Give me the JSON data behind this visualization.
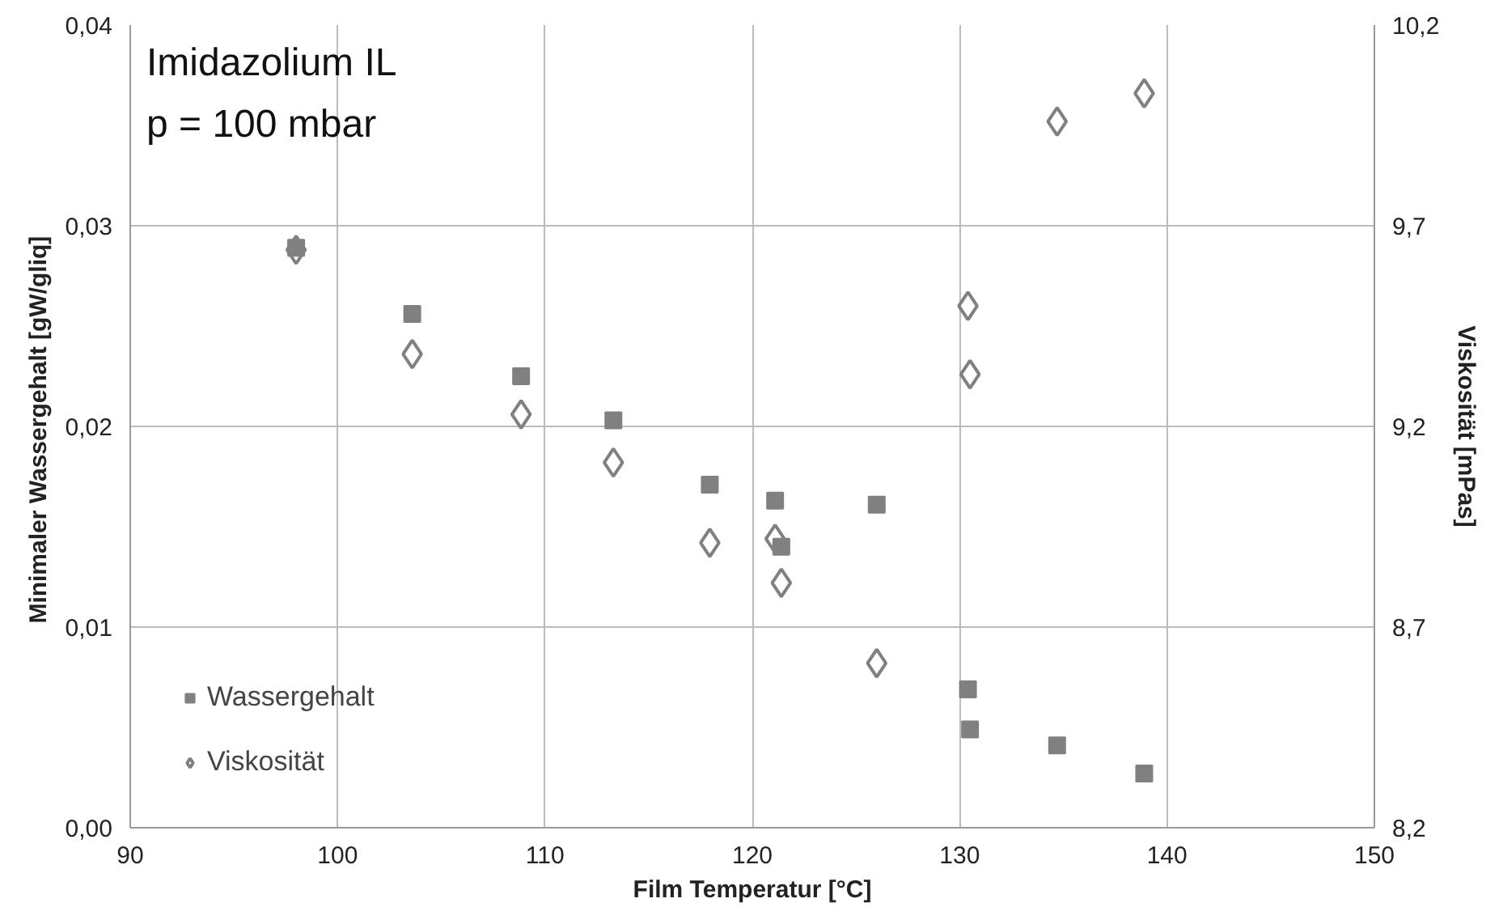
{
  "chart_data": {
    "type": "scatter",
    "xlabel": "Film Temperatur [°C]",
    "ylabel": "Minimaler Wassergehalt  [gW/gliq]",
    "y2label": "Viskosität [mPas]",
    "annotations": [
      "Imidazolium IL",
      "p = 100 mbar"
    ],
    "xlim": [
      90,
      150
    ],
    "xticks": [
      90,
      100,
      110,
      120,
      130,
      140,
      150
    ],
    "ylim": [
      0,
      0.04
    ],
    "yticks": [
      {
        "value": 0,
        "label": "0,00"
      },
      {
        "value": 0.01,
        "label": "0,01"
      },
      {
        "value": 0.02,
        "label": "0,02"
      },
      {
        "value": 0.03,
        "label": "0,03"
      },
      {
        "value": 0.04,
        "label": "0,04"
      }
    ],
    "y2lim": [
      8.2,
      10.2
    ],
    "y2ticks": [
      {
        "value": 8.2,
        "label": "8,2"
      },
      {
        "value": 8.7,
        "label": "8,7"
      },
      {
        "value": 9.2,
        "label": "9,2"
      },
      {
        "value": 9.7,
        "label": "9,7"
      },
      {
        "value": 10.2,
        "label": "10,2"
      }
    ],
    "grid": true,
    "legend": "bottom left",
    "series": [
      {
        "name": "Wassergehalt",
        "color": "#808080",
        "marker": "square",
        "x": [
          98.0,
          103.6,
          108.85,
          113.3,
          117.95,
          121.1,
          121.4,
          126.0,
          130.4,
          130.5,
          134.7,
          138.9
        ],
        "values": [
          0.0289,
          0.0256,
          0.0225,
          0.0203,
          0.0171,
          0.0163,
          0.014,
          0.0161,
          0.0069,
          0.0049,
          0.0041,
          0.0027
        ]
      },
      {
        "name": "Viskosität",
        "color": "#808080",
        "marker": "diamond",
        "axis": "y2",
        "x": [
          98.0,
          103.6,
          108.85,
          113.3,
          117.95,
          121.1,
          121.4,
          126.0,
          130.4,
          130.5,
          134.7,
          138.9
        ],
        "values": [
          9.64,
          9.38,
          9.23,
          9.11,
          8.91,
          8.92,
          8.81,
          8.61,
          9.5,
          9.33,
          9.96,
          10.03
        ]
      }
    ]
  }
}
